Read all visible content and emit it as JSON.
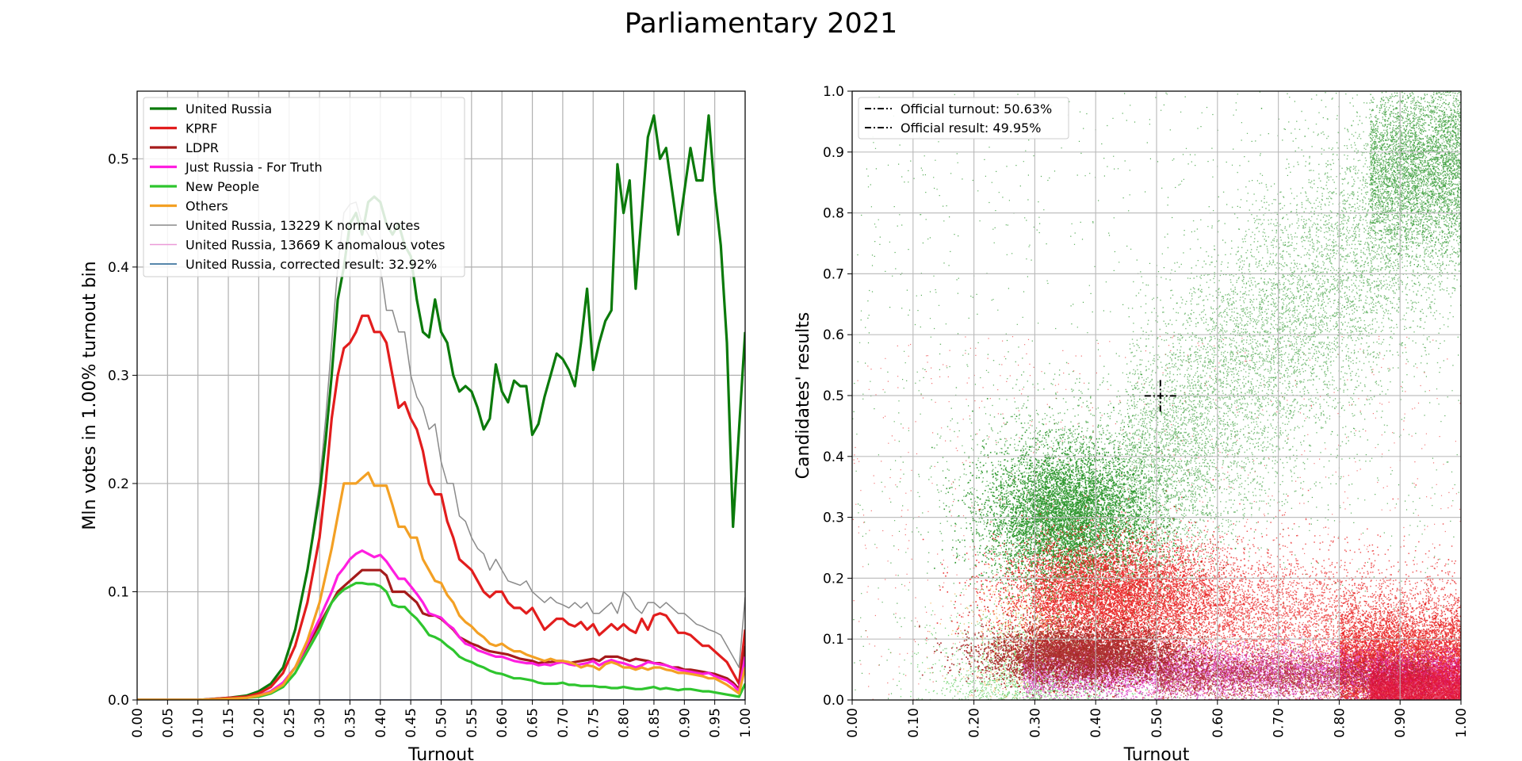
{
  "figure": {
    "title": "Parliamentary 2021"
  },
  "chart_data": [
    {
      "type": "line",
      "title": "",
      "xlabel": "Turnout",
      "ylabel": "Mln votes in 1.00% turnout bin",
      "xlim": [
        0,
        1
      ],
      "ylim": [
        0,
        0.5625
      ],
      "grid": true,
      "legend_position": "top-left",
      "x_ticks": [
        "0.00",
        "0.05",
        "0.10",
        "0.15",
        "0.20",
        "0.25",
        "0.30",
        "0.35",
        "0.40",
        "0.45",
        "0.50",
        "0.55",
        "0.60",
        "0.65",
        "0.70",
        "0.75",
        "0.80",
        "0.85",
        "0.90",
        "0.95",
        "1.00"
      ],
      "y_ticks": [
        "0.0",
        "0.1",
        "0.2",
        "0.3",
        "0.4",
        "0.5"
      ],
      "x": [
        0.0,
        0.05,
        0.1,
        0.15,
        0.18,
        0.2,
        0.22,
        0.24,
        0.26,
        0.28,
        0.3,
        0.31,
        0.32,
        0.33,
        0.34,
        0.35,
        0.36,
        0.37,
        0.38,
        0.39,
        0.4,
        0.41,
        0.42,
        0.43,
        0.44,
        0.45,
        0.46,
        0.47,
        0.48,
        0.49,
        0.5,
        0.51,
        0.52,
        0.53,
        0.54,
        0.55,
        0.56,
        0.57,
        0.58,
        0.59,
        0.6,
        0.61,
        0.62,
        0.63,
        0.64,
        0.65,
        0.66,
        0.67,
        0.68,
        0.69,
        0.7,
        0.71,
        0.72,
        0.73,
        0.74,
        0.75,
        0.76,
        0.77,
        0.78,
        0.79,
        0.8,
        0.81,
        0.82,
        0.83,
        0.84,
        0.85,
        0.86,
        0.87,
        0.88,
        0.89,
        0.9,
        0.91,
        0.92,
        0.93,
        0.94,
        0.95,
        0.96,
        0.97,
        0.98,
        0.99,
        1.0
      ],
      "series": [
        {
          "name": "United Russia",
          "color": "#0b7a0b",
          "width": 3.2,
          "values": [
            0,
            0,
            0,
            0.002,
            0.004,
            0.008,
            0.015,
            0.03,
            0.065,
            0.12,
            0.19,
            0.24,
            0.3,
            0.37,
            0.4,
            0.44,
            0.45,
            0.43,
            0.46,
            0.465,
            0.46,
            0.44,
            0.43,
            0.44,
            0.42,
            0.41,
            0.37,
            0.34,
            0.335,
            0.37,
            0.34,
            0.33,
            0.3,
            0.285,
            0.29,
            0.285,
            0.27,
            0.25,
            0.26,
            0.31,
            0.285,
            0.275,
            0.295,
            0.29,
            0.29,
            0.245,
            0.255,
            0.28,
            0.3,
            0.32,
            0.315,
            0.305,
            0.29,
            0.33,
            0.38,
            0.305,
            0.33,
            0.35,
            0.36,
            0.495,
            0.45,
            0.48,
            0.38,
            0.45,
            0.52,
            0.54,
            0.5,
            0.51,
            0.47,
            0.43,
            0.47,
            0.51,
            0.48,
            0.48,
            0.54,
            0.47,
            0.42,
            0.33,
            0.16,
            0.25,
            0.34
          ]
        },
        {
          "name": "KPRF",
          "color": "#e21d1d",
          "width": 3.2,
          "values": [
            0,
            0,
            0,
            0.002,
            0.003,
            0.006,
            0.012,
            0.025,
            0.05,
            0.09,
            0.15,
            0.2,
            0.26,
            0.3,
            0.325,
            0.33,
            0.34,
            0.355,
            0.355,
            0.34,
            0.34,
            0.33,
            0.3,
            0.27,
            0.275,
            0.26,
            0.25,
            0.23,
            0.2,
            0.19,
            0.19,
            0.165,
            0.15,
            0.13,
            0.125,
            0.12,
            0.11,
            0.1,
            0.095,
            0.1,
            0.1,
            0.09,
            0.085,
            0.085,
            0.08,
            0.085,
            0.075,
            0.065,
            0.07,
            0.075,
            0.075,
            0.07,
            0.068,
            0.072,
            0.065,
            0.07,
            0.06,
            0.065,
            0.07,
            0.065,
            0.07,
            0.065,
            0.062,
            0.075,
            0.065,
            0.078,
            0.08,
            0.078,
            0.07,
            0.062,
            0.062,
            0.06,
            0.055,
            0.05,
            0.05,
            0.045,
            0.04,
            0.035,
            0.025,
            0.015,
            0.065
          ]
        },
        {
          "name": "LDPR",
          "color": "#a51b1b",
          "width": 3.2,
          "values": [
            0,
            0,
            0,
            0.001,
            0.002,
            0.004,
            0.008,
            0.016,
            0.03,
            0.05,
            0.07,
            0.08,
            0.09,
            0.1,
            0.105,
            0.11,
            0.115,
            0.12,
            0.12,
            0.12,
            0.12,
            0.115,
            0.1,
            0.1,
            0.1,
            0.095,
            0.09,
            0.08,
            0.078,
            0.078,
            0.075,
            0.07,
            0.065,
            0.058,
            0.055,
            0.052,
            0.05,
            0.047,
            0.045,
            0.044,
            0.043,
            0.042,
            0.04,
            0.038,
            0.037,
            0.036,
            0.034,
            0.035,
            0.035,
            0.036,
            0.036,
            0.034,
            0.035,
            0.036,
            0.037,
            0.038,
            0.036,
            0.04,
            0.04,
            0.04,
            0.038,
            0.036,
            0.038,
            0.037,
            0.036,
            0.034,
            0.034,
            0.032,
            0.03,
            0.03,
            0.028,
            0.028,
            0.027,
            0.026,
            0.025,
            0.024,
            0.022,
            0.02,
            0.016,
            0.01,
            0.05
          ]
        },
        {
          "name": "Just Russia - For Truth",
          "color": "#ff1ee0",
          "width": 3.2,
          "values": [
            0,
            0,
            0,
            0.001,
            0.002,
            0.004,
            0.008,
            0.016,
            0.03,
            0.052,
            0.075,
            0.088,
            0.1,
            0.115,
            0.122,
            0.13,
            0.135,
            0.138,
            0.135,
            0.132,
            0.134,
            0.128,
            0.12,
            0.112,
            0.112,
            0.105,
            0.098,
            0.09,
            0.08,
            0.078,
            0.076,
            0.07,
            0.066,
            0.058,
            0.052,
            0.05,
            0.046,
            0.044,
            0.042,
            0.04,
            0.04,
            0.038,
            0.036,
            0.035,
            0.034,
            0.034,
            0.032,
            0.033,
            0.032,
            0.034,
            0.035,
            0.033,
            0.032,
            0.033,
            0.034,
            0.036,
            0.032,
            0.035,
            0.037,
            0.035,
            0.034,
            0.032,
            0.03,
            0.032,
            0.035,
            0.034,
            0.033,
            0.032,
            0.03,
            0.028,
            0.027,
            0.026,
            0.025,
            0.024,
            0.025,
            0.022,
            0.02,
            0.018,
            0.014,
            0.008,
            0.04
          ]
        },
        {
          "name": "New People",
          "color": "#2ec52e",
          "width": 3.2,
          "values": [
            0,
            0,
            0,
            0.001,
            0.002,
            0.003,
            0.006,
            0.012,
            0.025,
            0.045,
            0.065,
            0.078,
            0.09,
            0.097,
            0.102,
            0.105,
            0.108,
            0.108,
            0.107,
            0.107,
            0.105,
            0.1,
            0.088,
            0.086,
            0.086,
            0.08,
            0.075,
            0.068,
            0.06,
            0.058,
            0.055,
            0.05,
            0.046,
            0.04,
            0.037,
            0.035,
            0.032,
            0.03,
            0.027,
            0.025,
            0.024,
            0.022,
            0.02,
            0.02,
            0.019,
            0.018,
            0.016,
            0.015,
            0.015,
            0.015,
            0.016,
            0.014,
            0.014,
            0.013,
            0.013,
            0.013,
            0.012,
            0.012,
            0.011,
            0.011,
            0.012,
            0.011,
            0.01,
            0.01,
            0.011,
            0.012,
            0.01,
            0.011,
            0.01,
            0.009,
            0.01,
            0.01,
            0.009,
            0.008,
            0.008,
            0.007,
            0.006,
            0.005,
            0.004,
            0.003,
            0.015
          ]
        },
        {
          "name": "Others",
          "color": "#f3a024",
          "width": 3.2,
          "values": [
            0,
            0,
            0,
            0.001,
            0.002,
            0.004,
            0.007,
            0.014,
            0.03,
            0.055,
            0.09,
            0.115,
            0.14,
            0.17,
            0.2,
            0.2,
            0.2,
            0.205,
            0.21,
            0.198,
            0.198,
            0.198,
            0.18,
            0.16,
            0.16,
            0.15,
            0.15,
            0.13,
            0.12,
            0.11,
            0.108,
            0.097,
            0.09,
            0.078,
            0.072,
            0.068,
            0.062,
            0.058,
            0.052,
            0.05,
            0.052,
            0.048,
            0.045,
            0.045,
            0.042,
            0.04,
            0.038,
            0.036,
            0.038,
            0.036,
            0.036,
            0.035,
            0.033,
            0.03,
            0.032,
            0.031,
            0.028,
            0.033,
            0.035,
            0.033,
            0.03,
            0.03,
            0.028,
            0.03,
            0.028,
            0.03,
            0.03,
            0.028,
            0.027,
            0.025,
            0.025,
            0.024,
            0.023,
            0.022,
            0.02,
            0.02,
            0.017,
            0.014,
            0.01,
            0.006,
            0.03
          ]
        },
        {
          "name": "United Russia, 13229 K normal votes",
          "color": "#8a8a8a",
          "width": 1.5,
          "values": [
            0,
            0,
            0,
            0.002,
            0.004,
            0.008,
            0.015,
            0.03,
            0.065,
            0.12,
            0.2,
            0.26,
            0.33,
            0.4,
            0.45,
            0.458,
            0.46,
            0.44,
            0.43,
            0.42,
            0.4,
            0.36,
            0.36,
            0.34,
            0.34,
            0.3,
            0.28,
            0.27,
            0.25,
            0.255,
            0.22,
            0.2,
            0.2,
            0.17,
            0.165,
            0.15,
            0.14,
            0.135,
            0.12,
            0.13,
            0.12,
            0.11,
            0.108,
            0.106,
            0.11,
            0.1,
            0.095,
            0.09,
            0.095,
            0.09,
            0.088,
            0.085,
            0.09,
            0.085,
            0.09,
            0.08,
            0.08,
            0.085,
            0.09,
            0.08,
            0.1,
            0.095,
            0.085,
            0.08,
            0.09,
            0.09,
            0.085,
            0.09,
            0.085,
            0.08,
            0.08,
            0.075,
            0.07,
            0.068,
            0.065,
            0.063,
            0.06,
            0.05,
            0.04,
            0.03,
            0.095
          ]
        },
        {
          "name": "United Russia, 13669 K anomalous votes",
          "color": "#ec9ad8",
          "width": 1.5,
          "values": [
            0,
            0,
            0,
            0,
            0,
            0,
            0,
            0,
            0,
            0,
            0,
            0,
            0,
            0,
            0,
            0,
            0,
            0,
            0,
            0,
            0,
            0,
            0,
            0,
            0,
            0,
            0,
            0,
            0,
            0,
            0,
            0,
            0,
            0,
            0,
            0,
            0,
            0,
            0,
            0,
            0,
            0,
            0,
            0,
            0,
            0,
            0,
            0,
            0,
            0,
            0,
            0,
            0,
            0,
            0,
            0,
            0,
            0,
            0,
            0,
            0,
            0,
            0,
            0,
            0,
            0,
            0,
            0,
            0,
            0,
            0,
            0,
            0,
            0,
            0,
            0,
            0,
            0,
            0,
            0,
            0
          ]
        },
        {
          "name": "United Russia, corrected result: 32.92%",
          "color": "#1f5f8f",
          "width": 1.5,
          "values": [
            0,
            0,
            0,
            0,
            0,
            0,
            0,
            0,
            0,
            0,
            0,
            0,
            0,
            0,
            0,
            0,
            0,
            0,
            0,
            0,
            0,
            0,
            0,
            0,
            0,
            0,
            0,
            0,
            0,
            0,
            0,
            0,
            0,
            0,
            0,
            0,
            0,
            0,
            0,
            0,
            0,
            0,
            0,
            0,
            0,
            0,
            0,
            0,
            0,
            0,
            0,
            0,
            0,
            0,
            0,
            0,
            0,
            0,
            0,
            0,
            0,
            0,
            0,
            0,
            0,
            0,
            0,
            0,
            0,
            0,
            0,
            0,
            0,
            0,
            0,
            0,
            0,
            0,
            0,
            0,
            0
          ]
        }
      ]
    },
    {
      "type": "scatter",
      "title": "",
      "xlabel": "Turnout",
      "ylabel": "Candidates' results",
      "xlim": [
        0,
        1
      ],
      "ylim": [
        0,
        1
      ],
      "grid": true,
      "legend_position": "top-left",
      "x_ticks": [
        "0.00",
        "0.10",
        "0.20",
        "0.30",
        "0.40",
        "0.50",
        "0.60",
        "0.70",
        "0.80",
        "0.90",
        "1.00"
      ],
      "y_ticks": [
        "0.0",
        "0.1",
        "0.2",
        "0.3",
        "0.4",
        "0.5",
        "0.6",
        "0.7",
        "0.8",
        "0.9",
        "1.0"
      ],
      "legend": [
        "Official turnout: 50.63%",
        "Official result: 49.95%"
      ],
      "official_turnout": 0.5063,
      "official_result": 0.4995,
      "clusters": [
        {
          "name": "green",
          "color": "#138a13",
          "core": [
            0.35,
            0.3
          ],
          "trend_to": [
            0.97,
            0.9
          ]
        },
        {
          "name": "red",
          "color": "#e81818",
          "core": [
            0.45,
            0.15
          ],
          "trend_to": [
            0.95,
            0.06
          ]
        },
        {
          "name": "dark-red",
          "color": "#a62020",
          "core": [
            0.38,
            0.07
          ],
          "trend_to": [
            0.9,
            0.03
          ]
        },
        {
          "name": "magenta",
          "color": "#d62ab8",
          "core": [
            0.4,
            0.05
          ],
          "trend_to": [
            0.9,
            0.02
          ]
        },
        {
          "name": "light-green",
          "color": "#3fc23f",
          "core": [
            0.35,
            0.05
          ],
          "trend_to": [
            0.8,
            0.01
          ]
        },
        {
          "name": "orange",
          "color": "#f0a030",
          "core": [
            0.3,
            0.1
          ],
          "trend_to": [
            0.6,
            0.05
          ]
        }
      ]
    }
  ]
}
